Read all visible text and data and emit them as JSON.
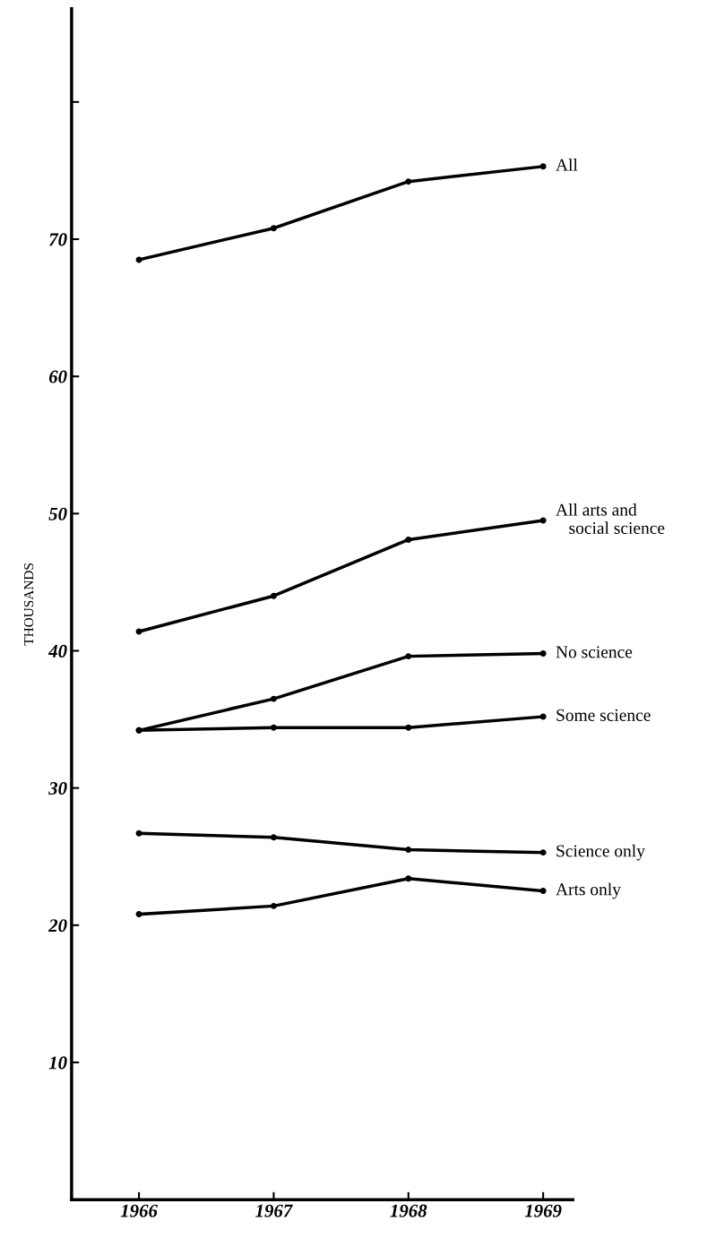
{
  "chart_data": {
    "type": "line",
    "ylabel": "THOUSANDS",
    "x": [
      1966,
      1967,
      1968,
      1969
    ],
    "xlim": [
      1965.5,
      1969.22
    ],
    "xticks": [
      1966,
      1967,
      1968,
      1969
    ],
    "ylim": [
      0,
      86.8
    ],
    "yticks": [
      10,
      20,
      30,
      40,
      50,
      60,
      70,
      {
        "value": 80,
        "label": null
      }
    ],
    "grid": false,
    "legend": false,
    "marker": "circle",
    "line_style": "solid",
    "series": [
      {
        "name": "All",
        "color": "#000000",
        "values": [
          68.5,
          70.8,
          74.2,
          75.3
        ]
      },
      {
        "name": "All arts and\n   social science",
        "color": "#000000",
        "values": [
          41.4,
          44.0,
          48.1,
          49.5
        ]
      },
      {
        "name": "No science",
        "color": "#000000",
        "values": [
          34.2,
          36.5,
          39.6,
          39.8
        ]
      },
      {
        "name": "Some science",
        "color": "#000000",
        "values": [
          34.2,
          34.4,
          34.4,
          35.2
        ]
      },
      {
        "name": "Science only",
        "color": "#000000",
        "values": [
          26.7,
          26.4,
          25.5,
          25.3
        ]
      },
      {
        "name": "Arts only",
        "color": "#000000",
        "values": [
          20.8,
          21.4,
          23.4,
          22.5
        ]
      }
    ]
  }
}
